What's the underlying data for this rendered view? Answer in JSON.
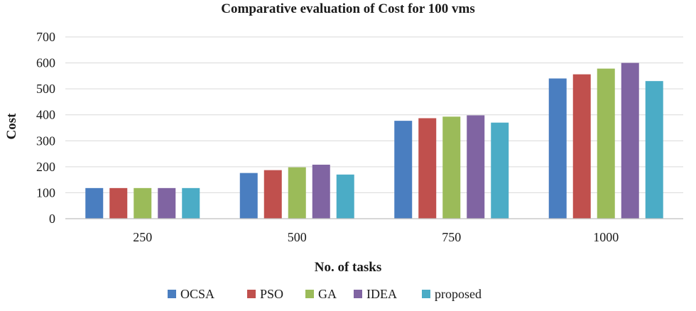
{
  "chart_data": {
    "type": "bar",
    "title": "Comparative evaluation of Cost for 100 vms",
    "xlabel": "No. of tasks",
    "ylabel": "Cost",
    "categories": [
      "250",
      "500",
      "750",
      "1000"
    ],
    "ylim": [
      0,
      700
    ],
    "yticks": [
      0,
      100,
      200,
      300,
      400,
      500,
      600,
      700
    ],
    "grid": true,
    "legend_position": "bottom",
    "series": [
      {
        "name": "OCSA",
        "color": "#4a7ec0",
        "values": [
          118,
          176,
          377,
          540
        ]
      },
      {
        "name": "PSO",
        "color": "#c0504d",
        "values": [
          118,
          187,
          387,
          556
        ]
      },
      {
        "name": "GA",
        "color": "#9bbb59",
        "values": [
          118,
          198,
          393,
          578
        ]
      },
      {
        "name": "IDEA",
        "color": "#8064a2",
        "values": [
          118,
          208,
          398,
          600
        ]
      },
      {
        "name": "proposed",
        "color": "#4bacc6",
        "values": [
          118,
          170,
          370,
          530
        ]
      }
    ]
  }
}
